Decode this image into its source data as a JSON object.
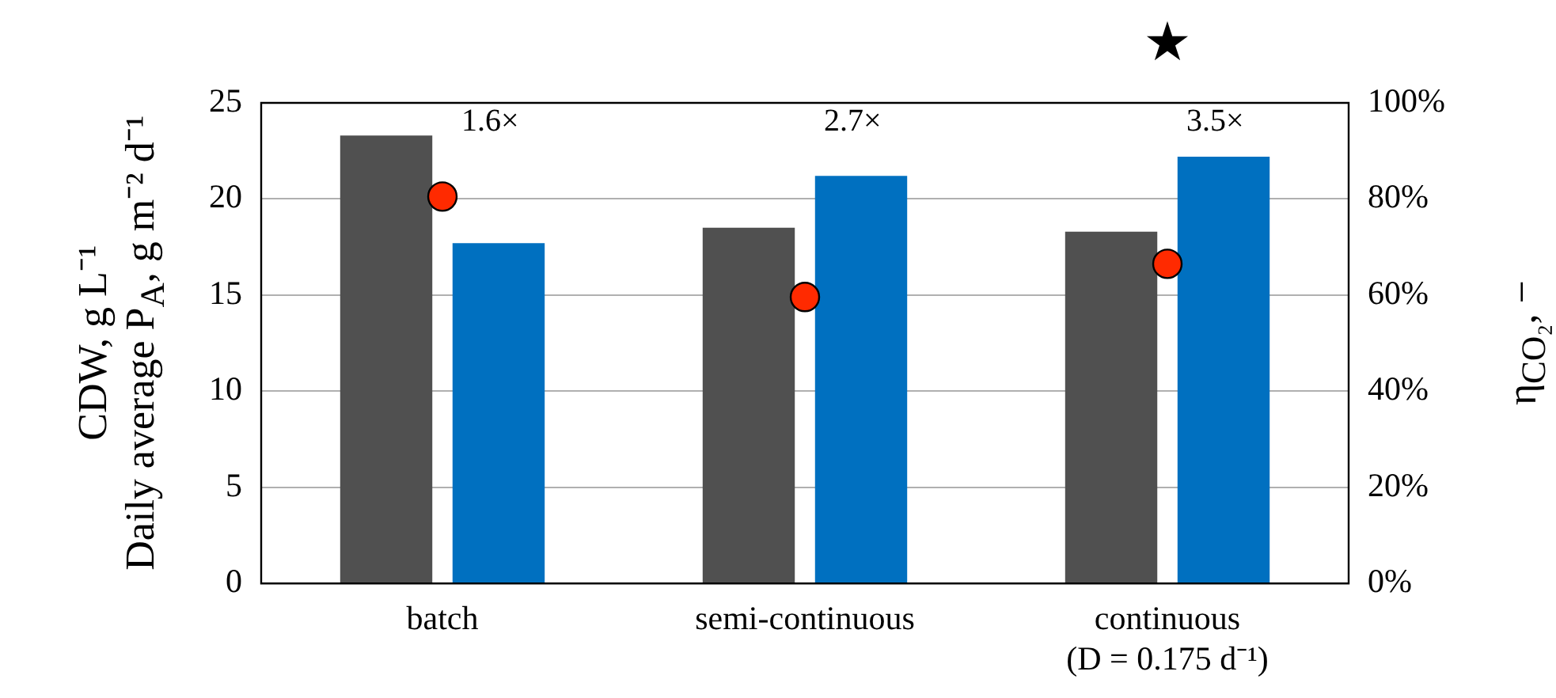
{
  "chart_data": {
    "type": "bar",
    "ylabel": "CDW, g L⁻¹\nDaily average P$_{A}$, g m⁻² d⁻¹",
    "y2label": "η$_{CO₂}$, −",
    "categories": [
      "batch",
      "semi-continuous",
      "continuous\n(D = 0.175 d⁻¹)"
    ],
    "series": [
      {
        "color": "#505050",
        "values": [
          23.3,
          18.5,
          18.3
        ]
      },
      {
        "color": "#0070c0",
        "values": [
          17.7,
          21.2,
          22.2
        ]
      },
      {
        "type": "scatter",
        "axis": "y2",
        "color": "#ff2a00",
        "x": [
          "batch",
          "semi-continuous",
          "continuous\n(D = 0.175 d⁻¹)"
        ],
        "values": [
          80.5,
          59.6,
          66.5
        ]
      }
    ],
    "ylim": [
      0,
      25
    ],
    "yticks": [
      0,
      5,
      10,
      15,
      20,
      25
    ],
    "y2lim": [
      0,
      100
    ],
    "y2ticks": [
      {
        "value": 0,
        "label": "0%"
      },
      {
        "value": 20,
        "label": "20%"
      },
      {
        "value": 40,
        "label": "40%"
      },
      {
        "value": 60,
        "label": "60%"
      },
      {
        "value": 80,
        "label": "80%"
      },
      {
        "value": 100,
        "label": "100%"
      }
    ],
    "annotations": [
      "1.6×",
      "2.7×",
      "3.5×",
      "★"
    ],
    "grid": "y",
    "legend": false,
    "marker": "circle"
  }
}
